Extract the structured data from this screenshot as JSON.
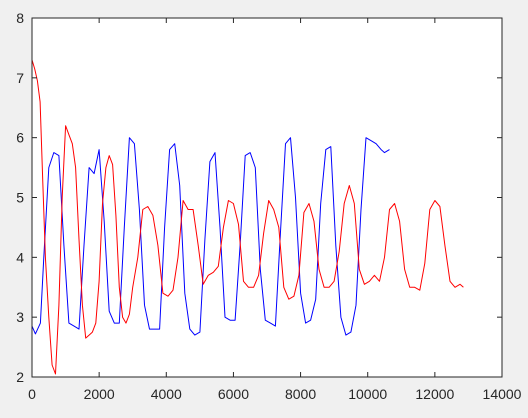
{
  "colors": {
    "figure_bg": "#f0f0f0",
    "axes_bg": "#ffffff",
    "axis": "#262626"
  },
  "chart_data": {
    "type": "line",
    "title": "",
    "xlabel": "",
    "ylabel": "",
    "xlim": [
      0,
      14000
    ],
    "ylim": [
      2,
      8
    ],
    "xticks": [
      0,
      2000,
      4000,
      6000,
      8000,
      10000,
      12000,
      14000
    ],
    "yticks": [
      2,
      3,
      4,
      5,
      6,
      7,
      8
    ],
    "xtick_labels": [
      "0",
      "2000",
      "4000",
      "6000",
      "8000",
      "10000",
      "12000",
      "14000"
    ],
    "ytick_labels": [
      "2",
      "3",
      "4",
      "5",
      "6",
      "7",
      "8"
    ],
    "grid": false,
    "legend": "none",
    "series": [
      {
        "color": "#0000ff",
        "x": [
          0,
          100,
          250,
          350,
          500,
          650,
          800,
          950,
          1100,
          1250,
          1400,
          1550,
          1700,
          1850,
          2000,
          2150,
          2300,
          2450,
          2600,
          2750,
          2900,
          3050,
          3200,
          3350,
          3500,
          3650,
          3800,
          3950,
          4100,
          4250,
          4400,
          4550,
          4700,
          4850,
          5000,
          5150,
          5300,
          5450,
          5600,
          5750,
          5900,
          6050,
          6200,
          6350,
          6500,
          6650,
          6800,
          6950,
          7100,
          7250,
          7400,
          7550,
          7700,
          7850,
          8000,
          8150,
          8300,
          8450,
          8600,
          8750,
          8900,
          9050,
          9200,
          9350,
          9500,
          9650,
          9800,
          9950,
          10100,
          10250,
          10400,
          10500,
          10650
        ],
        "y": [
          2.85,
          2.72,
          2.9,
          4.0,
          5.5,
          5.75,
          5.7,
          4.2,
          2.9,
          2.85,
          2.8,
          4.2,
          5.5,
          5.4,
          5.8,
          4.6,
          3.1,
          2.9,
          2.9,
          4.5,
          6.0,
          5.9,
          4.8,
          3.2,
          2.8,
          2.8,
          2.8,
          4.5,
          5.8,
          5.9,
          5.2,
          3.4,
          2.8,
          2.7,
          2.75,
          4.3,
          5.6,
          5.75,
          4.5,
          3.0,
          2.95,
          2.95,
          4.2,
          5.7,
          5.75,
          5.5,
          3.8,
          2.95,
          2.9,
          2.85,
          4.4,
          5.9,
          6.0,
          5.0,
          3.4,
          2.9,
          2.95,
          3.3,
          4.9,
          5.8,
          5.85,
          4.2,
          3.0,
          2.7,
          2.75,
          3.2,
          4.8,
          6.0,
          5.95,
          5.9,
          5.8,
          5.75,
          5.8
        ]
      },
      {
        "color": "#ff0000",
        "x": [
          0,
          80,
          160,
          240,
          320,
          400,
          500,
          600,
          700,
          800,
          900,
          1000,
          1100,
          1200,
          1300,
          1400,
          1500,
          1600,
          1700,
          1800,
          1900,
          2000,
          2100,
          2200,
          2300,
          2400,
          2500,
          2600,
          2700,
          2800,
          2900,
          3000,
          3150,
          3300,
          3450,
          3600,
          3750,
          3900,
          4050,
          4200,
          4350,
          4500,
          4650,
          4800,
          4950,
          5100,
          5250,
          5400,
          5550,
          5700,
          5850,
          6000,
          6150,
          6300,
          6450,
          6600,
          6750,
          6900,
          7050,
          7200,
          7350,
          7500,
          7650,
          7800,
          7950,
          8100,
          8250,
          8400,
          8550,
          8700,
          8850,
          9000,
          9150,
          9300,
          9450,
          9600,
          9750,
          9900,
          10050,
          10200,
          10350,
          10500,
          10650,
          10800,
          10950,
          11100,
          11250,
          11400,
          11550,
          11700,
          11850,
          12000,
          12150,
          12300,
          12450,
          12600,
          12750,
          12850
        ],
        "y": [
          7.3,
          7.15,
          6.95,
          6.6,
          5.3,
          4.0,
          3.0,
          2.2,
          2.05,
          3.2,
          5.0,
          6.2,
          6.05,
          5.9,
          5.5,
          4.3,
          3.2,
          2.65,
          2.7,
          2.75,
          2.9,
          3.6,
          4.9,
          5.5,
          5.7,
          5.55,
          4.7,
          3.5,
          3.0,
          2.9,
          3.05,
          3.5,
          4.0,
          4.8,
          4.85,
          4.7,
          4.2,
          3.4,
          3.35,
          3.45,
          4.0,
          4.95,
          4.8,
          4.8,
          4.2,
          3.55,
          3.7,
          3.75,
          3.85,
          4.5,
          4.95,
          4.9,
          4.55,
          3.6,
          3.5,
          3.5,
          3.7,
          4.4,
          4.95,
          4.8,
          4.5,
          3.5,
          3.3,
          3.35,
          3.7,
          4.75,
          4.9,
          4.6,
          3.8,
          3.5,
          3.5,
          3.6,
          4.1,
          4.9,
          5.2,
          4.9,
          3.8,
          3.55,
          3.6,
          3.7,
          3.6,
          4.0,
          4.8,
          4.9,
          4.6,
          3.8,
          3.5,
          3.5,
          3.45,
          3.9,
          4.8,
          4.95,
          4.85,
          4.2,
          3.6,
          3.5,
          3.55,
          3.5
        ]
      }
    ]
  }
}
